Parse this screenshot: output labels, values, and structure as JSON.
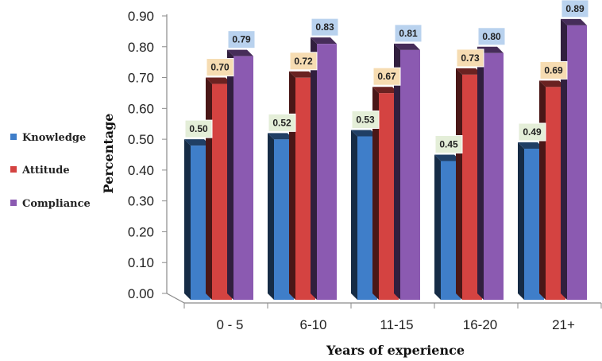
{
  "chart_data": {
    "type": "bar",
    "categories": [
      "0 - 5",
      "6-10",
      "11-15",
      "16-20",
      "21+"
    ],
    "series": [
      {
        "name": "Knowledge",
        "values": [
          0.5,
          0.52,
          0.53,
          0.45,
          0.49
        ],
        "color": "#3f7ec9",
        "label_bg": "#e4eed8"
      },
      {
        "name": "Attitude",
        "values": [
          0.7,
          0.72,
          0.67,
          0.73,
          0.69
        ],
        "color": "#d44341",
        "label_bg": "#f6dcb2"
      },
      {
        "name": "Compliance",
        "values": [
          0.79,
          0.83,
          0.81,
          0.8,
          0.89
        ],
        "color": "#8b5ab1",
        "label_bg": "#b9d2ee"
      }
    ],
    "y_ticks": [
      "0.00",
      "0.10",
      "0.20",
      "0.30",
      "0.40",
      "0.50",
      "0.60",
      "0.70",
      "0.80",
      "0.90"
    ],
    "ylim": [
      0,
      0.9
    ],
    "xlabel": "Years of experience",
    "ylabel": "Percentage",
    "legend_position": "left",
    "grid": false
  }
}
